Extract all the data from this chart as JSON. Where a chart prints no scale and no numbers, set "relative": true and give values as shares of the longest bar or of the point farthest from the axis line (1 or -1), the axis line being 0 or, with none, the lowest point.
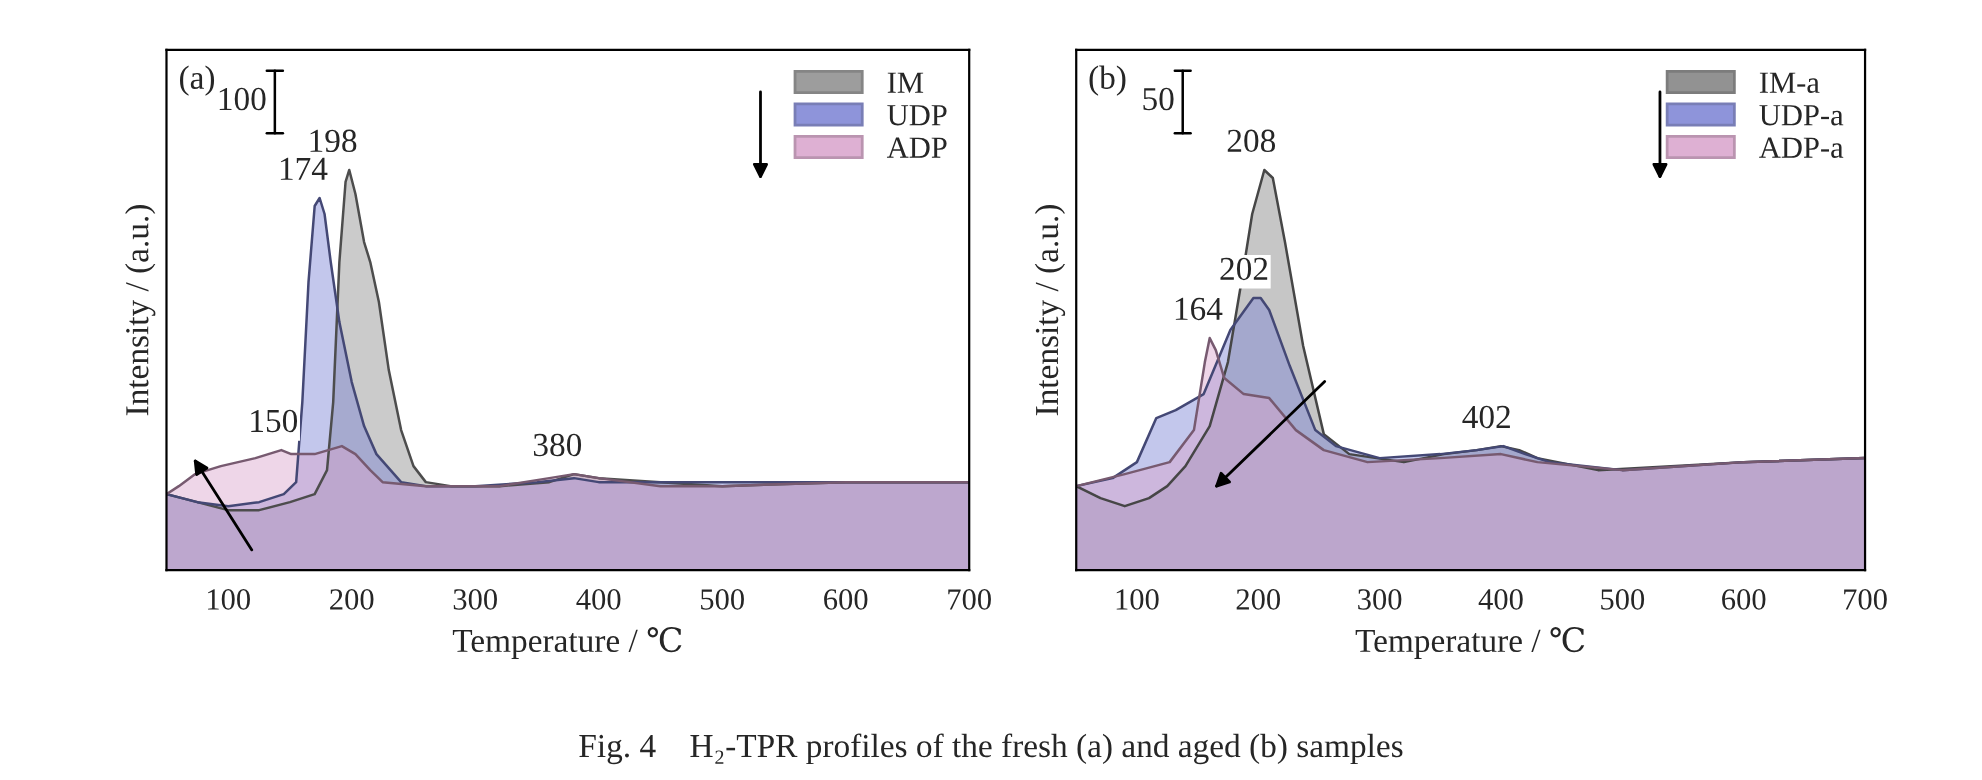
{
  "chart_data": [
    {
      "type": "area",
      "relative": true,
      "xlabel": "Temperature / ℃",
      "ylabel": "Intensity / (a.u.)",
      "xlim": [
        50,
        700
      ],
      "xticks": [
        100,
        200,
        300,
        400,
        500,
        600,
        700
      ],
      "tick_labels": "x",
      "grid": false,
      "legend": "top right",
      "series": [
        {
          "name": "IM",
          "color": "#8c8c8c",
          "x": [
            50,
            75,
            100,
            125,
            150,
            170,
            180,
            185,
            190,
            195,
            198,
            203,
            210,
            215,
            222,
            230,
            240,
            250,
            260,
            280,
            320,
            360,
            380,
            400,
            450,
            500,
            600,
            700
          ],
          "values": [
            0.19,
            0.17,
            0.15,
            0.15,
            0.17,
            0.19,
            0.25,
            0.42,
            0.77,
            0.97,
            1.0,
            0.94,
            0.82,
            0.77,
            0.67,
            0.5,
            0.35,
            0.26,
            0.22,
            0.21,
            0.21,
            0.22,
            0.24,
            0.23,
            0.22,
            0.21,
            0.22,
            0.22
          ]
        },
        {
          "name": "UDP",
          "color": "#7b82d4",
          "x": [
            50,
            75,
            100,
            125,
            145,
            155,
            160,
            165,
            170,
            174,
            178,
            183,
            190,
            200,
            210,
            220,
            240,
            260,
            300,
            350,
            380,
            400,
            500,
            600,
            700
          ],
          "values": [
            0.19,
            0.17,
            0.16,
            0.17,
            0.19,
            0.22,
            0.42,
            0.72,
            0.91,
            0.93,
            0.89,
            0.77,
            0.62,
            0.47,
            0.36,
            0.29,
            0.22,
            0.21,
            0.21,
            0.22,
            0.23,
            0.22,
            0.22,
            0.22,
            0.22
          ]
        },
        {
          "name": "ADP",
          "color": "#d9a3cc",
          "x": [
            50,
            60,
            73,
            94,
            122,
            143,
            151,
            170,
            192,
            203,
            215,
            225,
            260,
            320,
            360,
            380,
            400,
            450,
            500,
            600,
            700
          ],
          "values": [
            0.19,
            0.21,
            0.24,
            0.26,
            0.28,
            0.3,
            0.29,
            0.29,
            0.31,
            0.29,
            0.25,
            0.22,
            0.21,
            0.21,
            0.23,
            0.24,
            0.23,
            0.21,
            0.21,
            0.22,
            0.22
          ]
        }
      ],
      "annotations": [
        "(a)",
        "100",
        "Fig. 4    H₂-TPR profiles of the fresh (a) and aged (b) samples",
        {
          "text": "198",
          "x": 198,
          "y": 1.0
        },
        {
          "text": "174",
          "x": 174,
          "y": 0.93
        },
        {
          "text": "150",
          "x": 150,
          "y": 0.3
        },
        {
          "text": "380",
          "x": 380,
          "y": 0.24
        }
      ]
    },
    {
      "type": "area",
      "relative": true,
      "xlabel": "Temperature / ℃",
      "ylabel": "Intensity / (a.u.)",
      "xlim": [
        50,
        700
      ],
      "xticks": [
        100,
        200,
        300,
        400,
        500,
        600,
        700
      ],
      "tick_labels": "x",
      "grid": false,
      "legend": "top right",
      "series": [
        {
          "name": "IM-a",
          "color": "#808080",
          "x": [
            50,
            70,
            90,
            110,
            125,
            140,
            160,
            175,
            185,
            195,
            205,
            212,
            222,
            237,
            254,
            275,
            320,
            353,
            380,
            400,
            415,
            430,
            480,
            600,
            700
          ],
          "values": [
            0.21,
            0.18,
            0.16,
            0.18,
            0.21,
            0.26,
            0.36,
            0.52,
            0.7,
            0.89,
            1.0,
            0.98,
            0.82,
            0.56,
            0.34,
            0.29,
            0.27,
            0.29,
            0.3,
            0.31,
            0.3,
            0.28,
            0.25,
            0.27,
            0.28
          ]
        },
        {
          "name": "UDP-a",
          "color": "#7b82d4",
          "x": [
            50,
            80,
            100,
            116,
            132,
            155,
            177,
            196,
            202,
            209,
            226,
            247,
            264,
            300,
            350,
            380,
            402,
            420,
            440,
            500,
            600,
            700
          ],
          "values": [
            0.21,
            0.23,
            0.27,
            0.38,
            0.4,
            0.44,
            0.6,
            0.68,
            0.68,
            0.65,
            0.51,
            0.35,
            0.31,
            0.28,
            0.29,
            0.3,
            0.31,
            0.29,
            0.27,
            0.25,
            0.27,
            0.28
          ]
        },
        {
          "name": "ADP-a",
          "color": "#d9a3cc",
          "x": [
            50,
            90,
            127,
            147,
            156,
            160,
            165,
            172,
            188,
            209,
            231,
            254,
            290,
            350,
            400,
            430,
            500,
            600,
            700
          ],
          "values": [
            0.21,
            0.24,
            0.27,
            0.35,
            0.52,
            0.58,
            0.55,
            0.48,
            0.44,
            0.43,
            0.35,
            0.3,
            0.27,
            0.28,
            0.29,
            0.27,
            0.25,
            0.27,
            0.28
          ]
        }
      ],
      "annotations": [
        "(b)",
        "50",
        {
          "text": "208",
          "x": 208,
          "y": 1.0
        },
        {
          "text": "202",
          "x": 202,
          "y": 0.68
        },
        {
          "text": "164",
          "x": 164,
          "y": 0.58
        },
        {
          "text": "402",
          "x": 402,
          "y": 0.31
        }
      ]
    }
  ]
}
